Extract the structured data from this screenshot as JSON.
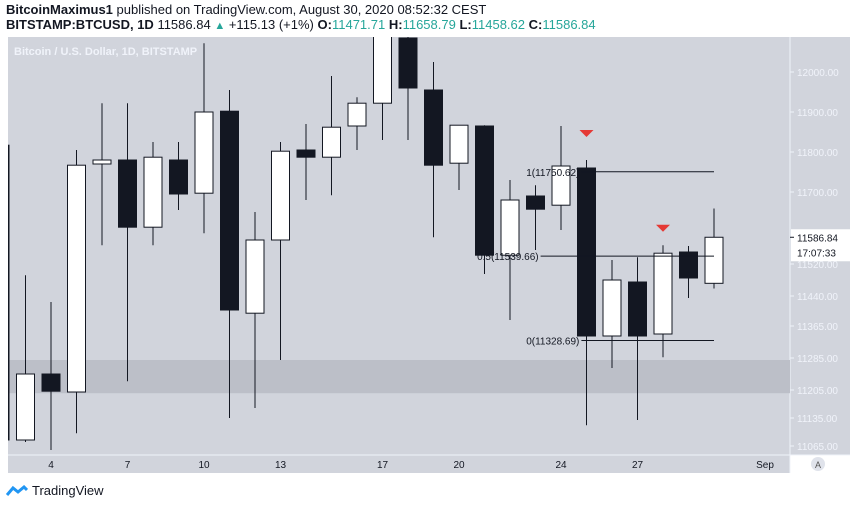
{
  "header": {
    "author": "BitcoinMaximus1",
    "published": "published on TradingView.com, August 30, 2020 08:52:32 CEST",
    "symbol": "BITSTAMP:BTCUSD, 1D",
    "last": "11586.84",
    "change": "+115.13 (+1%)",
    "o_label": "O:",
    "o": "11471.71",
    "h_label": "H:",
    "h": "11658.79",
    "l_label": "L:",
    "l": "11458.62",
    "c_label": "C:",
    "c": "11586.84"
  },
  "footer": {
    "brand": "TradingView"
  },
  "chart_data": {
    "type": "candlestick",
    "title": "Bitcoin / U.S. Dollar, 1D, BITSTAMP",
    "ylim": [
      11035,
      12100
    ],
    "y_ticks": [
      "12000.00",
      "11900.00",
      "11800.00",
      "11700.00",
      "11520.00",
      "11440.00",
      "11365.00",
      "11285.00",
      "11205.00",
      "11135.00",
      "11065.00"
    ],
    "y_tick_values": [
      12000,
      11900,
      11800,
      11700,
      11520,
      11440,
      11365,
      11285,
      11205,
      11135,
      11065
    ],
    "x_ticks": [
      {
        "label": "4",
        "day": 4
      },
      {
        "label": "7",
        "day": 7
      },
      {
        "label": "10",
        "day": 10
      },
      {
        "label": "13",
        "day": 13
      },
      {
        "label": "17",
        "day": 17
      },
      {
        "label": "20",
        "day": 20
      },
      {
        "label": "24",
        "day": 24
      },
      {
        "label": "27",
        "day": 27
      },
      {
        "label": "Sep",
        "day": 32
      }
    ],
    "last_price_label": "11586.84",
    "last_price": 11586.84,
    "countdown": "17:07:33",
    "scale_mode": "A",
    "candles": [
      {
        "day": 2,
        "o": 11817,
        "h": 11830,
        "l": 11060,
        "c": 11080
      },
      {
        "day": 3,
        "o": 11080,
        "h": 11492,
        "l": 11075,
        "c": 11245
      },
      {
        "day": 4,
        "o": 11245,
        "h": 11425,
        "l": 11055,
        "c": 11202
      },
      {
        "day": 5,
        "o": 11200,
        "h": 11805,
        "l": 11097,
        "c": 11767
      },
      {
        "day": 6,
        "o": 11770,
        "h": 11922,
        "l": 11567,
        "c": 11780
      },
      {
        "day": 7,
        "o": 11780,
        "h": 11922,
        "l": 11227,
        "c": 11612
      },
      {
        "day": 8,
        "o": 11612,
        "h": 11825,
        "l": 11567,
        "c": 11787
      },
      {
        "day": 9,
        "o": 11780,
        "h": 11825,
        "l": 11655,
        "c": 11695
      },
      {
        "day": 10,
        "o": 11697,
        "h": 12072,
        "l": 11597,
        "c": 11900
      },
      {
        "day": 11,
        "o": 11902,
        "h": 11955,
        "l": 11135,
        "c": 11405
      },
      {
        "day": 12,
        "o": 11397,
        "h": 11650,
        "l": 11160,
        "c": 11580
      },
      {
        "day": 13,
        "o": 11580,
        "h": 11825,
        "l": 11280,
        "c": 11802
      },
      {
        "day": 14,
        "o": 11805,
        "h": 11870,
        "l": 11680,
        "c": 11787
      },
      {
        "day": 15,
        "o": 11787,
        "h": 11990,
        "l": 11692,
        "c": 11862
      },
      {
        "day": 16,
        "o": 11865,
        "h": 11937,
        "l": 11805,
        "c": 11922
      },
      {
        "day": 17,
        "o": 11922,
        "h": 12105,
        "l": 11830,
        "c": 12092
      },
      {
        "day": 18,
        "o": 12085,
        "h": 12090,
        "l": 11830,
        "c": 11960
      },
      {
        "day": 19,
        "o": 11955,
        "h": 12025,
        "l": 11587,
        "c": 11767
      },
      {
        "day": 20,
        "o": 11772,
        "h": 11867,
        "l": 11705,
        "c": 11867
      },
      {
        "day": 21,
        "o": 11865,
        "h": 11867,
        "l": 11495,
        "c": 11542
      },
      {
        "day": 22,
        "o": 11542,
        "h": 11730,
        "l": 11380,
        "c": 11680
      },
      {
        "day": 23,
        "o": 11690,
        "h": 11717,
        "l": 11555,
        "c": 11657
      },
      {
        "day": 24,
        "o": 11667,
        "h": 11865,
        "l": 11605,
        "c": 11765
      },
      {
        "day": 25,
        "o": 11760,
        "h": 11780,
        "l": 11117,
        "c": 11340
      },
      {
        "day": 26,
        "o": 11340,
        "h": 11530,
        "l": 11260,
        "c": 11480
      },
      {
        "day": 27,
        "o": 11475,
        "h": 11537,
        "l": 11130,
        "c": 11340
      },
      {
        "day": 28,
        "o": 11345,
        "h": 11567,
        "l": 11287,
        "c": 11547
      },
      {
        "day": 29,
        "o": 11550,
        "h": 11565,
        "l": 11435,
        "c": 11485
      },
      {
        "day": 30,
        "o": 11471.71,
        "h": 11658.79,
        "l": 11458.62,
        "c": 11586.84
      }
    ],
    "zone": {
      "from": 11197,
      "to": 11280
    },
    "fib_levels": [
      {
        "label": "1(11750.62)",
        "value": 11750.62,
        "start_day": 24.8
      },
      {
        "label": "0.5(11539.66)",
        "value": 11539.66,
        "start_day": 23.2
      },
      {
        "label": "0(11328.69)",
        "value": 11328.69,
        "start_day": 24.8
      }
    ],
    "fib_end_day": 30,
    "markers": [
      {
        "day": 25,
        "price": 11845,
        "color": "#e53935"
      },
      {
        "day": 28,
        "price": 11608,
        "color": "#e53935"
      }
    ],
    "colors": {
      "bg": "#d1d4dc",
      "up": "#ffffff",
      "down": "#131722",
      "zone": "#bcbfc8"
    }
  }
}
